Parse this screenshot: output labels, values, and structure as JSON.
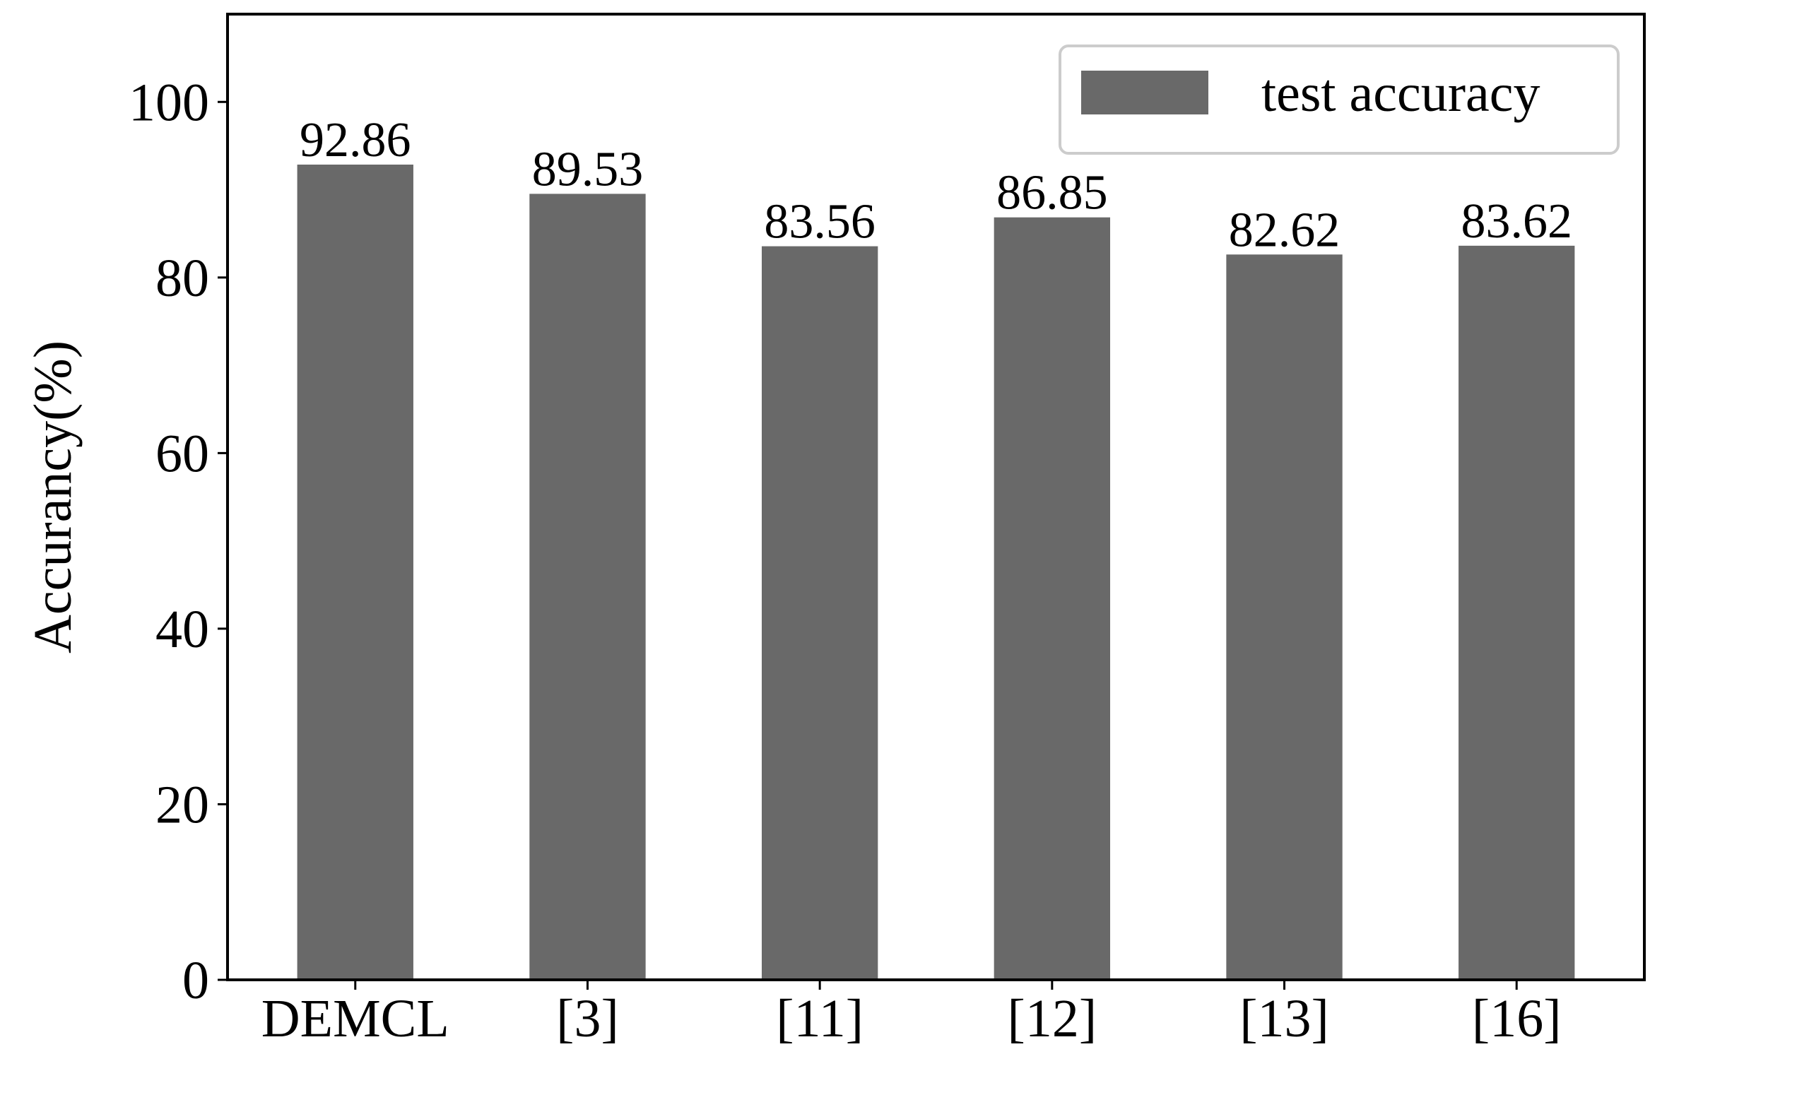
{
  "chart_data": {
    "type": "bar",
    "categories": [
      "DEMCL",
      "[3]",
      "[11]",
      "[12]",
      "[13]",
      "[16]"
    ],
    "series": [
      {
        "name": "test accuracy",
        "values": [
          92.86,
          89.53,
          83.56,
          86.85,
          82.62,
          83.62
        ],
        "data_labels": [
          "92.86",
          "89.53",
          "83.56",
          "86.85",
          "82.62",
          "83.62"
        ]
      }
    ],
    "ylabel": "Accurancy(%)",
    "xlabel": "",
    "ylim": [
      0,
      110
    ],
    "yticks": [
      0,
      20,
      40,
      60,
      80,
      100
    ],
    "ytick_labels": [
      "0",
      "20",
      "40",
      "60",
      "80",
      "100"
    ],
    "grid": false,
    "legend_position": "top-right",
    "bar_color": "#696969"
  }
}
